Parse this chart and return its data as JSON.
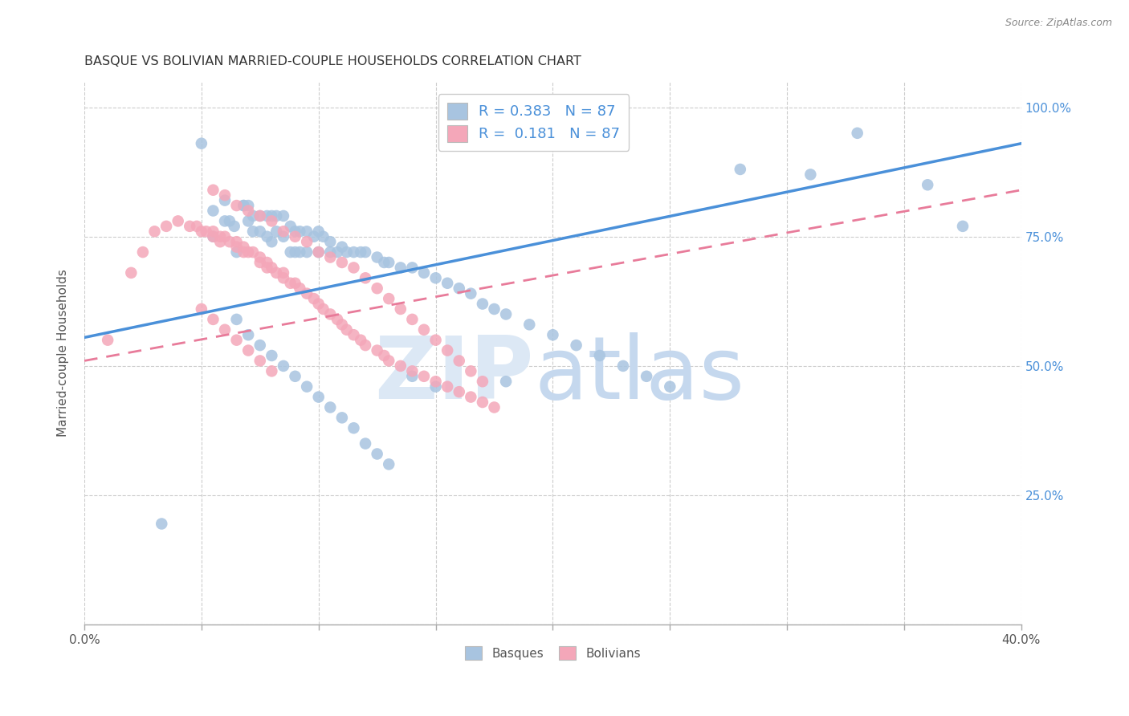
{
  "title": "BASQUE VS BOLIVIAN MARRIED-COUPLE HOUSEHOLDS CORRELATION CHART",
  "source": "Source: ZipAtlas.com",
  "ylabel": "Married-couple Households",
  "xlim": [
    0.0,
    0.4
  ],
  "ylim": [
    0.0,
    1.05
  ],
  "x_ticks": [
    0.0,
    0.05,
    0.1,
    0.15,
    0.2,
    0.25,
    0.3,
    0.35,
    0.4
  ],
  "x_tick_labels_show": {
    "0.0": "0.0%",
    "0.40": "40.0%"
  },
  "y_ticks": [
    0.0,
    0.25,
    0.5,
    0.75,
    1.0
  ],
  "y_tick_labels": [
    "",
    "25.0%",
    "50.0%",
    "75.0%",
    "100.0%"
  ],
  "basque_color": "#a8c4e0",
  "bolivian_color": "#f4a7b9",
  "basque_line_color": "#4a90d9",
  "bolivian_line_color": "#e87b9a",
  "legend_basque_label": "R = 0.383   N = 87",
  "legend_bolivian_label": "R =  0.181   N = 87",
  "legend_label_basques": "Basques",
  "legend_label_bolivians": "Bolivians",
  "basque_x": [
    0.033,
    0.05,
    0.055,
    0.055,
    0.06,
    0.06,
    0.062,
    0.064,
    0.065,
    0.068,
    0.068,
    0.07,
    0.07,
    0.072,
    0.072,
    0.075,
    0.075,
    0.078,
    0.078,
    0.08,
    0.08,
    0.082,
    0.082,
    0.085,
    0.085,
    0.088,
    0.088,
    0.09,
    0.09,
    0.092,
    0.092,
    0.095,
    0.095,
    0.098,
    0.1,
    0.1,
    0.102,
    0.105,
    0.105,
    0.108,
    0.11,
    0.112,
    0.115,
    0.118,
    0.12,
    0.125,
    0.128,
    0.13,
    0.135,
    0.14,
    0.145,
    0.15,
    0.155,
    0.16,
    0.165,
    0.17,
    0.175,
    0.18,
    0.19,
    0.2,
    0.21,
    0.22,
    0.23,
    0.24,
    0.25,
    0.065,
    0.07,
    0.075,
    0.08,
    0.085,
    0.09,
    0.095,
    0.1,
    0.105,
    0.11,
    0.115,
    0.12,
    0.125,
    0.13,
    0.14,
    0.15,
    0.18,
    0.28,
    0.31,
    0.33,
    0.36,
    0.375
  ],
  "basque_y": [
    0.195,
    0.93,
    0.8,
    0.75,
    0.82,
    0.78,
    0.78,
    0.77,
    0.72,
    0.81,
    0.81,
    0.81,
    0.78,
    0.79,
    0.76,
    0.79,
    0.76,
    0.79,
    0.75,
    0.79,
    0.74,
    0.79,
    0.76,
    0.79,
    0.75,
    0.77,
    0.72,
    0.76,
    0.72,
    0.76,
    0.72,
    0.76,
    0.72,
    0.75,
    0.76,
    0.72,
    0.75,
    0.74,
    0.72,
    0.72,
    0.73,
    0.72,
    0.72,
    0.72,
    0.72,
    0.71,
    0.7,
    0.7,
    0.69,
    0.69,
    0.68,
    0.67,
    0.66,
    0.65,
    0.64,
    0.62,
    0.61,
    0.6,
    0.58,
    0.56,
    0.54,
    0.52,
    0.5,
    0.48,
    0.46,
    0.59,
    0.56,
    0.54,
    0.52,
    0.5,
    0.48,
    0.46,
    0.44,
    0.42,
    0.4,
    0.38,
    0.35,
    0.33,
    0.31,
    0.48,
    0.46,
    0.47,
    0.88,
    0.87,
    0.95,
    0.85,
    0.77
  ],
  "bolivian_x": [
    0.01,
    0.02,
    0.025,
    0.03,
    0.035,
    0.04,
    0.045,
    0.048,
    0.05,
    0.052,
    0.055,
    0.055,
    0.058,
    0.058,
    0.06,
    0.062,
    0.065,
    0.065,
    0.068,
    0.068,
    0.07,
    0.072,
    0.075,
    0.075,
    0.078,
    0.078,
    0.08,
    0.082,
    0.085,
    0.085,
    0.088,
    0.09,
    0.092,
    0.095,
    0.098,
    0.1,
    0.102,
    0.105,
    0.108,
    0.11,
    0.112,
    0.115,
    0.118,
    0.12,
    0.125,
    0.128,
    0.13,
    0.135,
    0.14,
    0.145,
    0.15,
    0.155,
    0.16,
    0.165,
    0.17,
    0.175,
    0.055,
    0.06,
    0.065,
    0.07,
    0.075,
    0.08,
    0.085,
    0.09,
    0.095,
    0.1,
    0.105,
    0.11,
    0.115,
    0.12,
    0.125,
    0.13,
    0.135,
    0.14,
    0.145,
    0.15,
    0.155,
    0.16,
    0.165,
    0.17,
    0.05,
    0.055,
    0.06,
    0.065,
    0.07,
    0.075,
    0.08
  ],
  "bolivian_y": [
    0.55,
    0.68,
    0.72,
    0.76,
    0.77,
    0.78,
    0.77,
    0.77,
    0.76,
    0.76,
    0.76,
    0.75,
    0.75,
    0.74,
    0.75,
    0.74,
    0.74,
    0.73,
    0.73,
    0.72,
    0.72,
    0.72,
    0.71,
    0.7,
    0.7,
    0.69,
    0.69,
    0.68,
    0.68,
    0.67,
    0.66,
    0.66,
    0.65,
    0.64,
    0.63,
    0.62,
    0.61,
    0.6,
    0.59,
    0.58,
    0.57,
    0.56,
    0.55,
    0.54,
    0.53,
    0.52,
    0.51,
    0.5,
    0.49,
    0.48,
    0.47,
    0.46,
    0.45,
    0.44,
    0.43,
    0.42,
    0.84,
    0.83,
    0.81,
    0.8,
    0.79,
    0.78,
    0.76,
    0.75,
    0.74,
    0.72,
    0.71,
    0.7,
    0.69,
    0.67,
    0.65,
    0.63,
    0.61,
    0.59,
    0.57,
    0.55,
    0.53,
    0.51,
    0.49,
    0.47,
    0.61,
    0.59,
    0.57,
    0.55,
    0.53,
    0.51,
    0.49
  ],
  "basque_line_x": [
    0.0,
    0.4
  ],
  "basque_line_y": [
    0.555,
    0.93
  ],
  "bolivian_line_x": [
    0.0,
    0.4
  ],
  "bolivian_line_y": [
    0.51,
    0.84
  ]
}
